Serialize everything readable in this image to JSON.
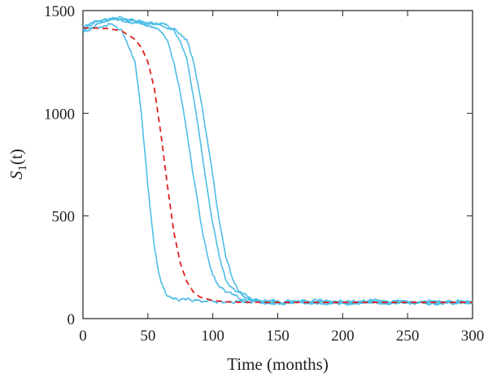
{
  "chart_data": {
    "type": "line",
    "xlabel": "Time (months)",
    "ylabel": "S",
    "ylabel_sub": "1",
    "ylabel_arg": "(t)",
    "xlim": [
      0,
      300
    ],
    "ylim": [
      0,
      1500
    ],
    "xticks": [
      0,
      50,
      100,
      150,
      200,
      250,
      300
    ],
    "yticks": [
      0,
      500,
      1000,
      1500
    ],
    "x_tick_labels": [
      "0",
      "50",
      "100",
      "150",
      "200",
      "250",
      "300"
    ],
    "y_tick_labels": [
      "0",
      "500",
      "1000",
      "1500"
    ],
    "grid": false,
    "colors": {
      "simulation": "#4dbde6",
      "mean": "#e02020",
      "axis": "#231f20"
    },
    "series": [
      {
        "style": "solid",
        "x": [
          0,
          10,
          20,
          30,
          40,
          45,
          50,
          55,
          60,
          65,
          70,
          75,
          80,
          90,
          100,
          120,
          150,
          200,
          250,
          300
        ],
        "y": [
          1400,
          1420,
          1430,
          1400,
          1250,
          1000,
          650,
          350,
          180,
          110,
          100,
          95,
          90,
          85,
          82,
          80,
          78,
          78,
          77,
          78
        ]
      },
      {
        "style": "solid",
        "x": [
          0,
          10,
          20,
          30,
          40,
          50,
          60,
          65,
          70,
          75,
          80,
          85,
          90,
          95,
          100,
          105,
          110,
          120,
          130,
          150,
          200,
          250,
          300
        ],
        "y": [
          1410,
          1440,
          1455,
          1450,
          1445,
          1430,
          1400,
          1350,
          1250,
          1100,
          900,
          700,
          500,
          330,
          220,
          160,
          130,
          100,
          88,
          82,
          80,
          78,
          80
        ]
      },
      {
        "style": "solid",
        "x": [
          0,
          10,
          20,
          30,
          40,
          50,
          60,
          70,
          75,
          80,
          85,
          90,
          95,
          100,
          105,
          110,
          115,
          120,
          130,
          150,
          200,
          250,
          300
        ],
        "y": [
          1420,
          1450,
          1460,
          1455,
          1450,
          1445,
          1430,
          1400,
          1350,
          1250,
          1080,
          880,
          660,
          460,
          300,
          190,
          140,
          110,
          90,
          82,
          80,
          79,
          80
        ]
      },
      {
        "style": "solid",
        "x": [
          0,
          10,
          20,
          30,
          40,
          50,
          60,
          70,
          80,
          85,
          90,
          95,
          100,
          105,
          110,
          115,
          120,
          130,
          150,
          200,
          250,
          300
        ],
        "y": [
          1410,
          1440,
          1460,
          1458,
          1450,
          1440,
          1430,
          1410,
          1350,
          1250,
          1100,
          900,
          680,
          470,
          310,
          200,
          130,
          95,
          82,
          80,
          79,
          79
        ]
      },
      {
        "style": "dashed",
        "x": [
          0,
          10,
          20,
          30,
          40,
          45,
          50,
          55,
          60,
          65,
          70,
          75,
          80,
          85,
          90,
          100,
          110,
          120,
          150,
          200,
          250,
          300
        ],
        "y": [
          1415,
          1415,
          1412,
          1400,
          1360,
          1320,
          1250,
          1120,
          900,
          650,
          420,
          270,
          180,
          130,
          105,
          88,
          82,
          80,
          79,
          79,
          79,
          79
        ]
      }
    ]
  }
}
